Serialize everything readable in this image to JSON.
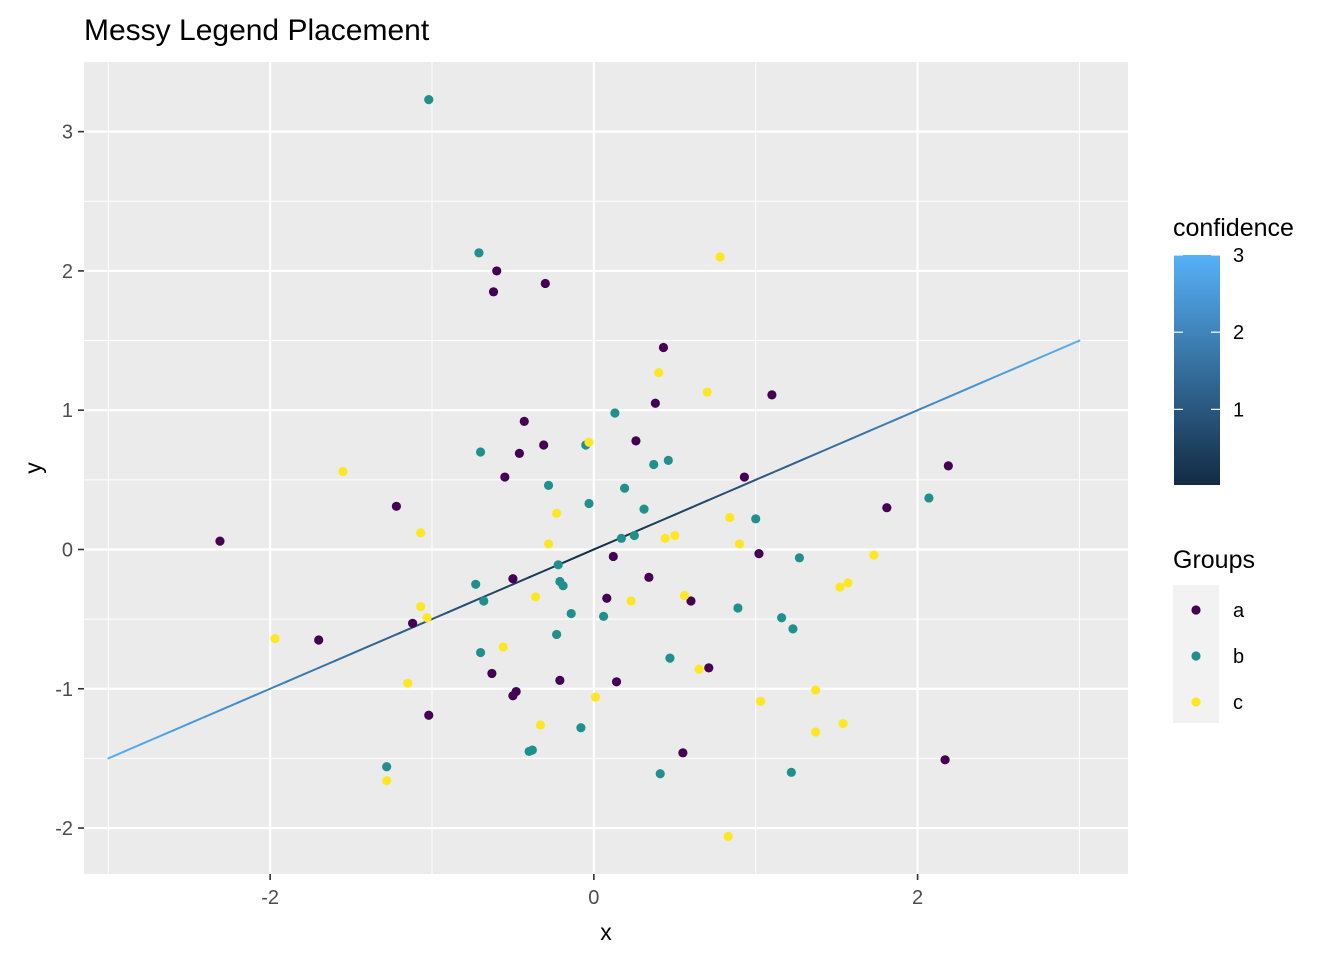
{
  "chart_data": {
    "type": "scatter",
    "title": "Messy Legend Placement",
    "xlabel": "x",
    "ylabel": "y",
    "xlim": [
      -3.15,
      3.3
    ],
    "ylim": [
      -2.33,
      3.5
    ],
    "x_ticks": [
      -2,
      0,
      2
    ],
    "x_tick_labels": [
      "-2",
      "0",
      "2"
    ],
    "y_ticks": [
      -2,
      -1,
      0,
      1,
      2,
      3
    ],
    "y_tick_labels": [
      "-2",
      "-1",
      "0",
      "1",
      "2",
      "3"
    ],
    "grid": true,
    "colors": {
      "a": "#440154",
      "b": "#21908C",
      "c": "#FDE725"
    },
    "legends": {
      "confidence": {
        "title": "confidence",
        "labels": [
          "1",
          "2",
          "3"
        ],
        "values": [
          1,
          2,
          3
        ],
        "range": [
          0.02,
          3.0
        ],
        "low_color": "#132B43",
        "high_color": "#56B1F7",
        "placement": "right"
      },
      "groups": {
        "title": "Groups",
        "entries": [
          "a",
          "b",
          "c"
        ],
        "placement": "right"
      }
    },
    "line": {
      "x": [
        -3,
        3
      ],
      "y": [
        -1.5,
        1.5
      ],
      "color_scale": "confidence"
    },
    "series": [
      {
        "name": "a",
        "points": [
          [
            -2.31,
            0.06
          ],
          [
            -1.7,
            -0.65
          ],
          [
            -1.22,
            0.31
          ],
          [
            -1.12,
            -0.53
          ],
          [
            -1.02,
            -1.19
          ],
          [
            -0.62,
            1.85
          ],
          [
            -0.6,
            2.0
          ],
          [
            -0.55,
            0.52
          ],
          [
            -0.63,
            -0.89
          ],
          [
            -0.5,
            -0.21
          ],
          [
            -0.48,
            -1.02
          ],
          [
            -0.5,
            -1.05
          ],
          [
            -0.43,
            0.92
          ],
          [
            -0.46,
            0.69
          ],
          [
            -0.31,
            0.75
          ],
          [
            -0.3,
            1.91
          ],
          [
            -0.21,
            -0.94
          ],
          [
            0.08,
            -0.35
          ],
          [
            0.12,
            -0.05
          ],
          [
            0.14,
            -0.95
          ],
          [
            0.26,
            0.78
          ],
          [
            0.34,
            -0.2
          ],
          [
            0.38,
            1.05
          ],
          [
            0.43,
            1.45
          ],
          [
            0.55,
            -1.46
          ],
          [
            0.6,
            -0.37
          ],
          [
            0.71,
            -0.85
          ],
          [
            0.93,
            0.52
          ],
          [
            1.02,
            -0.03
          ],
          [
            1.1,
            1.11
          ],
          [
            1.81,
            0.3
          ],
          [
            2.17,
            -1.51
          ],
          [
            2.19,
            0.6
          ]
        ]
      },
      {
        "name": "b",
        "points": [
          [
            -1.28,
            -1.56
          ],
          [
            -1.02,
            3.23
          ],
          [
            -0.73,
            -0.25
          ],
          [
            -0.71,
            2.13
          ],
          [
            -0.7,
            0.7
          ],
          [
            -0.7,
            -0.74
          ],
          [
            -0.68,
            -0.37
          ],
          [
            -0.4,
            -1.45
          ],
          [
            -0.38,
            -1.44
          ],
          [
            -0.28,
            0.46
          ],
          [
            -0.23,
            -0.61
          ],
          [
            -0.22,
            -0.11
          ],
          [
            -0.21,
            -0.23
          ],
          [
            -0.19,
            -0.26
          ],
          [
            -0.14,
            -0.46
          ],
          [
            -0.08,
            -1.28
          ],
          [
            -0.05,
            0.75
          ],
          [
            -0.03,
            0.33
          ],
          [
            0.06,
            -0.48
          ],
          [
            0.13,
            0.98
          ],
          [
            0.17,
            0.08
          ],
          [
            0.19,
            0.44
          ],
          [
            0.25,
            0.1
          ],
          [
            0.31,
            0.29
          ],
          [
            0.37,
            0.61
          ],
          [
            0.41,
            -1.61
          ],
          [
            0.46,
            0.64
          ],
          [
            0.47,
            -0.78
          ],
          [
            0.89,
            -0.42
          ],
          [
            1.0,
            0.22
          ],
          [
            1.16,
            -0.49
          ],
          [
            1.22,
            -1.6
          ],
          [
            1.23,
            -0.57
          ],
          [
            1.27,
            -0.06
          ],
          [
            2.07,
            0.37
          ]
        ]
      },
      {
        "name": "c",
        "points": [
          [
            -1.97,
            -0.64
          ],
          [
            -1.55,
            0.56
          ],
          [
            -1.28,
            -1.66
          ],
          [
            -1.15,
            -0.96
          ],
          [
            -1.07,
            0.12
          ],
          [
            -1.07,
            -0.41
          ],
          [
            -1.03,
            -0.49
          ],
          [
            -0.56,
            -0.7
          ],
          [
            -0.36,
            -0.34
          ],
          [
            -0.33,
            -1.26
          ],
          [
            -0.28,
            0.04
          ],
          [
            -0.23,
            0.26
          ],
          [
            -0.03,
            0.77
          ],
          [
            0.01,
            -1.06
          ],
          [
            0.23,
            -0.37
          ],
          [
            0.4,
            1.27
          ],
          [
            0.44,
            0.08
          ],
          [
            0.5,
            0.1
          ],
          [
            0.56,
            -0.33
          ],
          [
            0.65,
            -0.86
          ],
          [
            0.7,
            1.13
          ],
          [
            0.78,
            2.1
          ],
          [
            0.83,
            -2.06
          ],
          [
            0.84,
            0.23
          ],
          [
            0.9,
            0.04
          ],
          [
            1.03,
            -1.09
          ],
          [
            1.37,
            -1.01
          ],
          [
            1.37,
            -1.31
          ],
          [
            1.52,
            -0.27
          ],
          [
            1.54,
            -1.25
          ],
          [
            1.57,
            -0.24
          ],
          [
            1.73,
            -0.04
          ]
        ]
      }
    ]
  }
}
